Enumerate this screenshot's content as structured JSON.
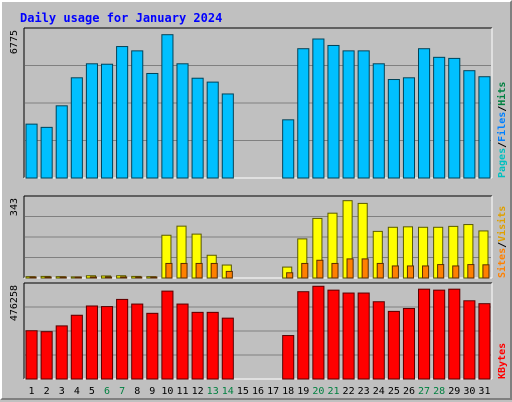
{
  "chart_data": {
    "type": "bar",
    "title": "Daily usage for January 2024",
    "days": [
      "1",
      "2",
      "3",
      "4",
      "5",
      "6",
      "7",
      "8",
      "9",
      "10",
      "11",
      "12",
      "13",
      "14",
      "15",
      "16",
      "17",
      "18",
      "19",
      "20",
      "21",
      "22",
      "23",
      "24",
      "25",
      "26",
      "27",
      "28",
      "29",
      "30",
      "31"
    ],
    "weekend_days": [
      "6",
      "7",
      "13",
      "14",
      "20",
      "21",
      "27",
      "28"
    ],
    "panels": [
      {
        "id": "hits-files-pages",
        "max_label": "6775",
        "max": 6775,
        "legend": [
          "Pages",
          "/",
          "Files",
          "/",
          "Hits"
        ],
        "series": [
          {
            "name": "Hits",
            "color": "#008040",
            "values": [
              0,
              0,
              0,
              0,
              0,
              0,
              0,
              0,
              0,
              0,
              0,
              0,
              0,
              0,
              0,
              0,
              0,
              0,
              0,
              0,
              0,
              0,
              0,
              0,
              0,
              0,
              0,
              0,
              0,
              0,
              0
            ]
          },
          {
            "name": "Files",
            "color": "#00c0ff",
            "values": [
              2500,
              2350,
              3350,
              4650,
              5300,
              5280,
              6100,
              5900,
              4850,
              6650,
              5300,
              4630,
              4450,
              3900,
              0,
              0,
              0,
              2700,
              6000,
              6450,
              6150,
              5900,
              5900,
              5300,
              4570,
              4650,
              6000,
              5600,
              5550,
              4980,
              4700
            ]
          },
          {
            "name": "Pages",
            "color": "#00e0e0",
            "values": [
              0,
              0,
              0,
              0,
              0,
              0,
              0,
              0,
              0,
              0,
              0,
              0,
              0,
              0,
              0,
              0,
              0,
              0,
              0,
              0,
              0,
              0,
              0,
              0,
              0,
              0,
              0,
              0,
              0,
              0,
              0
            ]
          }
        ]
      },
      {
        "id": "visits-sites",
        "max_label": "343",
        "max": 343,
        "legend": [
          "Sites",
          "/",
          "Visits"
        ],
        "series": [
          {
            "name": "Visits",
            "color": "#ffff00",
            "values": [
              6,
              7,
              6,
              5,
              10,
              9,
              10,
              7,
              6,
              188,
              228,
              193,
              100,
              57,
              0,
              0,
              0,
              48,
              172,
              262,
              285,
              340,
              328,
              205,
              223,
              225,
              223,
              223,
              227,
              235,
              207
            ]
          },
          {
            "name": "Sites",
            "color": "#ff8000",
            "values": [
              2,
              3,
              2,
              2,
              4,
              4,
              4,
              2,
              2,
              64,
              64,
              64,
              64,
              29,
              0,
              0,
              0,
              23,
              64,
              78,
              64,
              84,
              84,
              64,
              53,
              53,
              53,
              59,
              53,
              59,
              58
            ]
          }
        ]
      },
      {
        "id": "kbytes",
        "max_label": "476258",
        "max": 476258,
        "legend": [
          "KBytes"
        ],
        "series": [
          {
            "name": "KBytes",
            "color": "#ff0000",
            "values": [
              250000,
              245000,
              275000,
              330000,
              378000,
              375000,
              412000,
              388000,
              340000,
              455000,
              388000,
              345000,
              345000,
              315000,
              0,
              0,
              0,
              225000,
              452000,
              480000,
              460000,
              445000,
              445000,
              400000,
              350000,
              365000,
              465000,
              460000,
              465000,
              405000,
              390000
            ]
          }
        ]
      }
    ]
  }
}
